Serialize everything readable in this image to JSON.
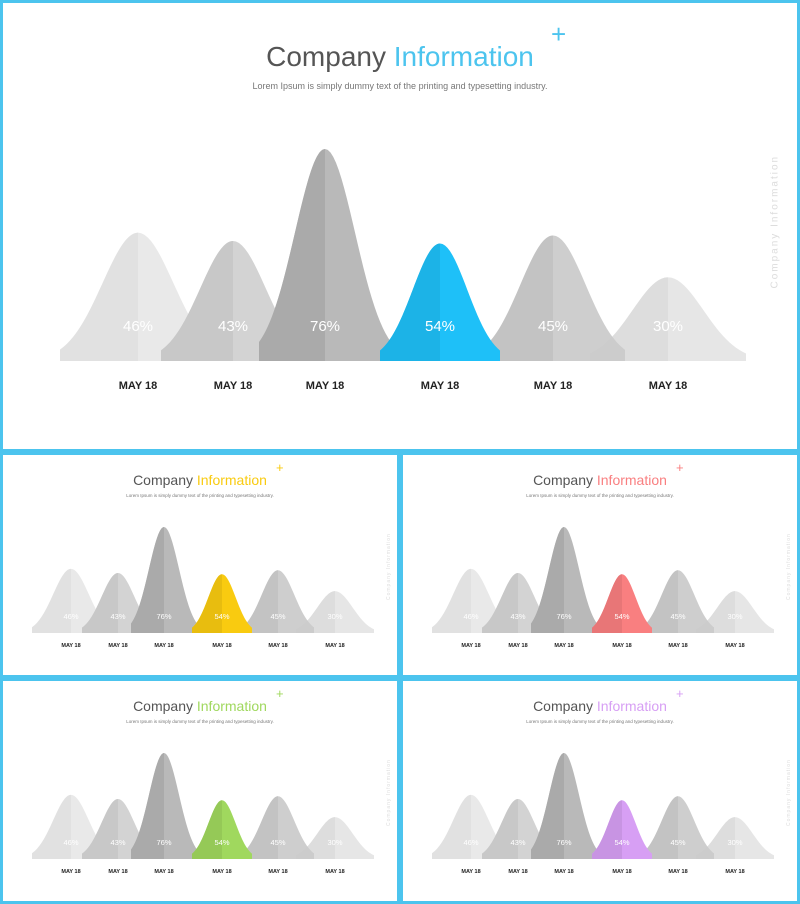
{
  "colors": {
    "border": "#4cc4ee",
    "highlights": [
      "#1ec0f8",
      "#f9cb10",
      "#f97f80",
      "#a0d85e",
      "#d79ff4"
    ]
  },
  "slides": [
    {
      "title_main": "Company",
      "title_accent": "Information",
      "plus": "+",
      "subtitle": "Lorem Ipsum is simply dummy text of the printing and typesetting industry.",
      "side_label": "Company Information"
    },
    {
      "title_main": "Company",
      "title_accent": "Information",
      "plus": "+",
      "subtitle": "Lorem Ipsum is simply dummy text of the printing and typesetting industry.",
      "side_label": "Company Information"
    },
    {
      "title_main": "Company",
      "title_accent": "Information",
      "plus": "+",
      "subtitle": "Lorem Ipsum is simply dummy text of the printing and typesetting industry.",
      "side_label": "Company Information"
    },
    {
      "title_main": "Company",
      "title_accent": "Information",
      "plus": "+",
      "subtitle": "Lorem Ipsum is simply dummy text of the printing and typesetting industry.",
      "side_label": "Company Information"
    },
    {
      "title_main": "Company",
      "title_accent": "Information",
      "plus": "+",
      "subtitle": "Lorem Ipsum is simply dummy text of the printing and typesetting industry.",
      "side_label": "Company Information"
    }
  ],
  "chart_data": [
    {
      "type": "area",
      "categories": [
        "MAY 18",
        "MAY 18",
        "MAY 18",
        "MAY 18",
        "MAY 18",
        "MAY 18"
      ],
      "values": [
        46,
        43,
        76,
        54,
        45,
        30
      ],
      "labels": [
        "46%",
        "43%",
        "76%",
        "54%",
        "45%",
        "30%"
      ],
      "highlight_index": 3,
      "highlight_color": "#1ec0f8"
    },
    {
      "type": "area",
      "categories": [
        "MAY 18",
        "MAY 18",
        "MAY 18",
        "MAY 18",
        "MAY 18",
        "MAY 18"
      ],
      "values": [
        46,
        43,
        76,
        54,
        45,
        30
      ],
      "labels": [
        "46%",
        "43%",
        "76%",
        "54%",
        "45%",
        "30%"
      ],
      "highlight_index": 3,
      "highlight_color": "#f9cb10"
    },
    {
      "type": "area",
      "categories": [
        "MAY 18",
        "MAY 18",
        "MAY 18",
        "MAY 18",
        "MAY 18",
        "MAY 18"
      ],
      "values": [
        46,
        43,
        76,
        54,
        45,
        30
      ],
      "labels": [
        "46%",
        "43%",
        "76%",
        "54%",
        "45%",
        "30%"
      ],
      "highlight_index": 3,
      "highlight_color": "#f97f80"
    },
    {
      "type": "area",
      "categories": [
        "MAY 18",
        "MAY 18",
        "MAY 18",
        "MAY 18",
        "MAY 18",
        "MAY 18"
      ],
      "values": [
        46,
        43,
        76,
        54,
        45,
        30
      ],
      "labels": [
        "46%",
        "43%",
        "76%",
        "54%",
        "45%",
        "30%"
      ],
      "highlight_index": 3,
      "highlight_color": "#a0d85e"
    },
    {
      "type": "area",
      "categories": [
        "MAY 18",
        "MAY 18",
        "MAY 18",
        "MAY 18",
        "MAY 18",
        "MAY 18"
      ],
      "values": [
        46,
        43,
        76,
        54,
        45,
        30
      ],
      "labels": [
        "46%",
        "43%",
        "76%",
        "54%",
        "45%",
        "30%"
      ],
      "highlight_index": 3,
      "highlight_color": "#d79ff4"
    }
  ]
}
